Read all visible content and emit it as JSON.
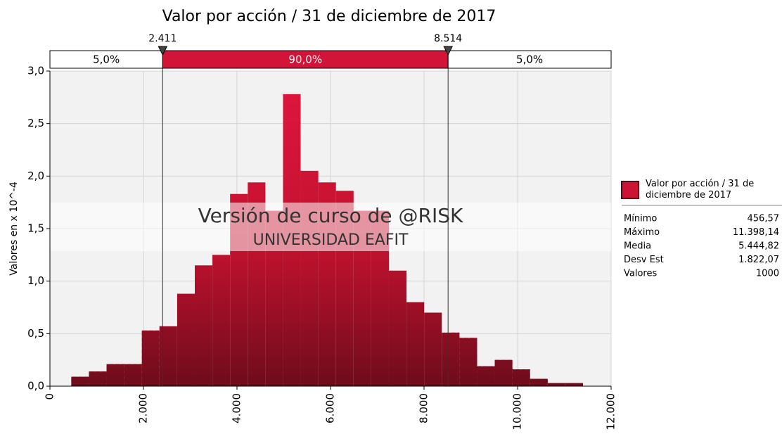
{
  "chart_data": {
    "type": "histogram",
    "title": "Valor por acción / 31 de diciembre de 2017",
    "ylabel": "Valores en x 10^-4",
    "watermark": [
      "Versión de curso de @RISK",
      "UNIVERSIDAD EAFIT"
    ],
    "series": [
      {
        "name": "Valor por acción / 31 de diciembre de 2017",
        "color": "#d21438",
        "bins": [
          456.57,
          833.87,
          1211.16,
          1588.46,
          1965.75,
          2343.05,
          2720.34,
          3097.64,
          3474.93,
          3852.23,
          4229.52,
          4606.82,
          4984.11,
          5361.41,
          5738.7,
          6116.0,
          6493.29,
          6870.59,
          7247.88,
          7625.18,
          8002.47,
          8379.77,
          8757.06,
          9134.36,
          9511.65,
          9888.95,
          10266.24,
          10643.54,
          11020.83,
          11398.14
        ],
        "values": [
          0.09,
          0.14,
          0.21,
          0.21,
          0.53,
          0.57,
          0.88,
          1.15,
          1.25,
          1.83,
          1.94,
          1.67,
          2.78,
          2.05,
          1.94,
          1.86,
          1.67,
          1.67,
          1.1,
          0.8,
          0.7,
          0.51,
          0.46,
          0.19,
          0.25,
          0.16,
          0.07,
          0.03,
          0.03
        ]
      }
    ],
    "delimiters": [
      {
        "value": 2411,
        "label": "2.411"
      },
      {
        "value": 8514,
        "label": "8.514"
      }
    ],
    "regions": [
      {
        "value": 5,
        "label": "5,0%"
      },
      {
        "value": 90,
        "label": "90,0%"
      },
      {
        "value": 5,
        "label": "5,0%"
      }
    ],
    "xlim": [
      0,
      12000
    ],
    "xticks": [
      0,
      {
        "value": 2000,
        "label": "2.000"
      },
      {
        "value": 4000,
        "label": "4.000"
      },
      {
        "value": 6000,
        "label": "6.000"
      },
      {
        "value": 8000,
        "label": "8.000"
      },
      {
        "value": 10000,
        "label": "10.000"
      },
      {
        "value": 12000,
        "label": "12.000"
      }
    ],
    "ylim": [
      0,
      3
    ],
    "yticks": [
      {
        "value": 0,
        "label": "0,0"
      },
      {
        "value": 0.5,
        "label": "0,5"
      },
      {
        "value": 1,
        "label": "1,0"
      },
      {
        "value": 1.5,
        "label": "1,5"
      },
      {
        "value": 2,
        "label": "2,0"
      },
      {
        "value": 2.5,
        "label": "2,5"
      },
      {
        "value": 3,
        "label": "3,0"
      }
    ],
    "grid": true,
    "stats": [
      {
        "name": "Mínimo",
        "value": {
          "value": 456.57,
          "label": "456,57"
        }
      },
      {
        "name": "Máximo",
        "value": {
          "value": 11398.14,
          "label": "11.398,14"
        }
      },
      {
        "name": "Media",
        "value": {
          "value": 5444.82,
          "label": "5.444,82"
        }
      },
      {
        "name": "Desv Est",
        "value": {
          "value": 1822.07,
          "label": "1.822,07"
        }
      },
      {
        "name": "Valores",
        "value": 1000
      }
    ]
  }
}
